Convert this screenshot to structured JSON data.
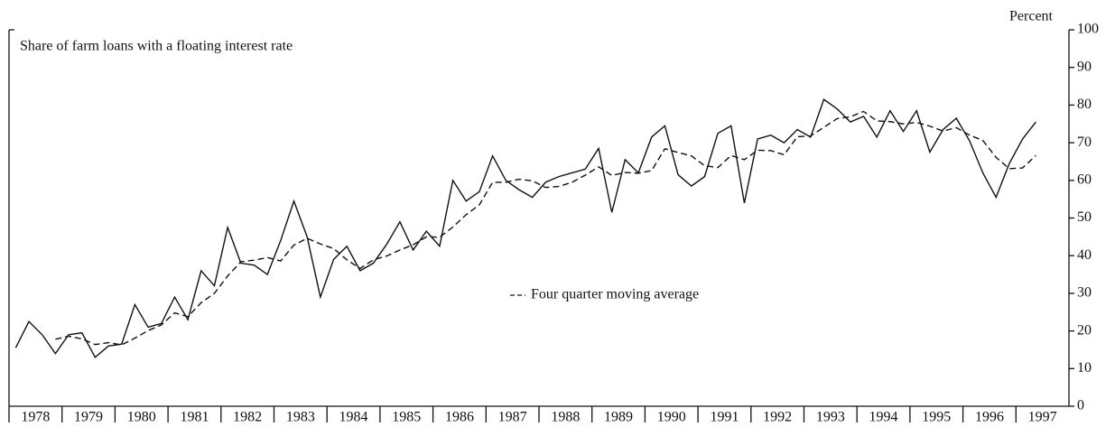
{
  "chart_data": {
    "type": "line",
    "title": "Share of farm loans with a floating interest rate",
    "y_label": "Percent",
    "x": [
      1978.125,
      1978.375,
      1978.625,
      1978.875,
      1979.125,
      1979.375,
      1979.625,
      1979.875,
      1980.125,
      1980.375,
      1980.625,
      1980.875,
      1981.125,
      1981.375,
      1981.625,
      1981.875,
      1982.125,
      1982.375,
      1982.625,
      1982.875,
      1983.125,
      1983.375,
      1983.625,
      1983.875,
      1984.125,
      1984.375,
      1984.625,
      1984.875,
      1985.125,
      1985.375,
      1985.625,
      1985.875,
      1986.125,
      1986.375,
      1986.625,
      1986.875,
      1987.125,
      1987.375,
      1987.625,
      1987.875,
      1988.125,
      1988.375,
      1988.625,
      1988.875,
      1989.125,
      1989.375,
      1989.625,
      1989.875,
      1990.125,
      1990.375,
      1990.625,
      1990.875,
      1991.125,
      1991.375,
      1991.625,
      1991.875,
      1992.125,
      1992.375,
      1992.625,
      1992.875,
      1993.125,
      1993.375,
      1993.625,
      1993.875,
      1994.125,
      1994.375,
      1994.625,
      1994.875,
      1995.125,
      1995.375,
      1995.625,
      1995.875,
      1996.125,
      1996.375,
      1996.625,
      1996.875,
      1997.125,
      1997.375
    ],
    "series": [
      {
        "color": "#111111",
        "dash": false,
        "values": [
          15.5,
          22.5,
          19,
          14,
          19,
          19.5,
          13,
          16,
          16.5,
          27,
          21,
          22,
          29,
          23,
          36,
          32,
          47.5,
          38,
          37.5,
          35,
          44,
          54.5,
          45,
          29,
          39,
          42.5,
          36,
          38,
          43,
          49,
          41.5,
          46.5,
          42.5,
          60,
          54.5,
          57,
          66.5,
          60,
          57.5,
          55.5,
          59.5,
          61,
          62,
          63,
          68.5,
          51.5,
          65.5,
          62,
          71.5,
          74.5,
          61.5,
          58.5,
          61,
          72.5,
          74.5,
          54,
          71,
          72,
          70,
          73.5,
          71.5,
          81.5,
          79,
          75.5,
          77,
          71.5,
          78.5,
          73,
          78.5,
          67.5,
          73.5,
          76.5,
          70.5,
          62,
          55.5,
          64.5,
          71,
          75.5
        ]
      },
      {
        "name": "Four quarter moving average",
        "color": "#111111",
        "dash": true,
        "values": [
          null,
          null,
          null,
          17.8,
          18.6,
          17.9,
          16.4,
          16.9,
          16.3,
          18.1,
          20.1,
          21.6,
          24.8,
          23.8,
          27.5,
          30,
          34.6,
          38.4,
          38.8,
          39.5,
          38.6,
          42.8,
          44.6,
          43.1,
          41.9,
          38.9,
          36.6,
          38.9,
          39.9,
          41.5,
          42.9,
          45,
          44.9,
          47.6,
          50.9,
          53.5,
          59.5,
          59.5,
          60.3,
          59.9,
          58.1,
          58.4,
          59.5,
          61.4,
          63.6,
          61.3,
          62.1,
          61.9,
          62.6,
          68.4,
          67.4,
          66.5,
          63.9,
          63.4,
          66.6,
          65.5,
          68,
          67.9,
          66.8,
          71.6,
          71.8,
          74.1,
          76.4,
          76.9,
          78.3,
          75.8,
          75.6,
          75,
          75.4,
          74.4,
          73.1,
          74,
          72,
          70.6,
          66.1,
          63.1,
          63.3,
          66.6
        ]
      }
    ],
    "xlim": [
      1978,
      1998
    ],
    "xticks": [
      {
        "value": 1978,
        "label": "1978"
      },
      {
        "value": 1979,
        "label": "1979"
      },
      {
        "value": 1980,
        "label": "1980"
      },
      {
        "value": 1981,
        "label": "1981"
      },
      {
        "value": 1982,
        "label": "1982"
      },
      {
        "value": 1983,
        "label": "1983"
      },
      {
        "value": 1984,
        "label": "1984"
      },
      {
        "value": 1985,
        "label": "1985"
      },
      {
        "value": 1986,
        "label": "1986"
      },
      {
        "value": 1987,
        "label": "1987"
      },
      {
        "value": 1988,
        "label": "1988"
      },
      {
        "value": 1989,
        "label": "1989"
      },
      {
        "value": 1990,
        "label": "1990"
      },
      {
        "value": 1991,
        "label": "1991"
      },
      {
        "value": 1992,
        "label": "1992"
      },
      {
        "value": 1993,
        "label": "1993"
      },
      {
        "value": 1994,
        "label": "1994"
      },
      {
        "value": 1995,
        "label": "1995"
      },
      {
        "value": 1996,
        "label": "1996"
      },
      {
        "value": 1997,
        "label": "1997"
      }
    ],
    "ylim": [
      0,
      100
    ],
    "yticks": [
      0,
      10,
      20,
      30,
      40,
      50,
      60,
      70,
      80,
      90,
      100
    ],
    "grid": false
  }
}
